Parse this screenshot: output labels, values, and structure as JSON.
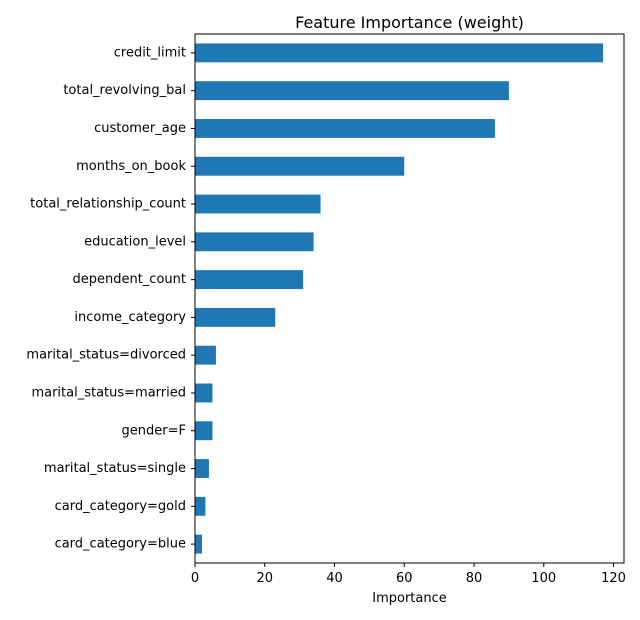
{
  "chart_data": {
    "type": "bar",
    "orientation": "horizontal",
    "title": "Feature Importance (weight)",
    "xlabel": "Importance",
    "ylabel": "",
    "xlim": [
      0,
      123
    ],
    "xticks": [
      0,
      20,
      40,
      60,
      80,
      100,
      120
    ],
    "grid": false,
    "legend": "none",
    "bar_color": "#1f77b4",
    "categories": [
      "credit_limit",
      "total_revolving_bal",
      "customer_age",
      "months_on_book",
      "total_relationship_count",
      "education_level",
      "dependent_count",
      "income_category",
      "marital_status=divorced",
      "marital_status=married",
      "gender=F",
      "marital_status=single",
      "card_category=gold",
      "card_category=blue"
    ],
    "values": [
      117,
      90,
      86,
      60,
      36,
      34,
      31,
      23,
      6,
      5,
      5,
      4,
      3,
      2
    ]
  }
}
